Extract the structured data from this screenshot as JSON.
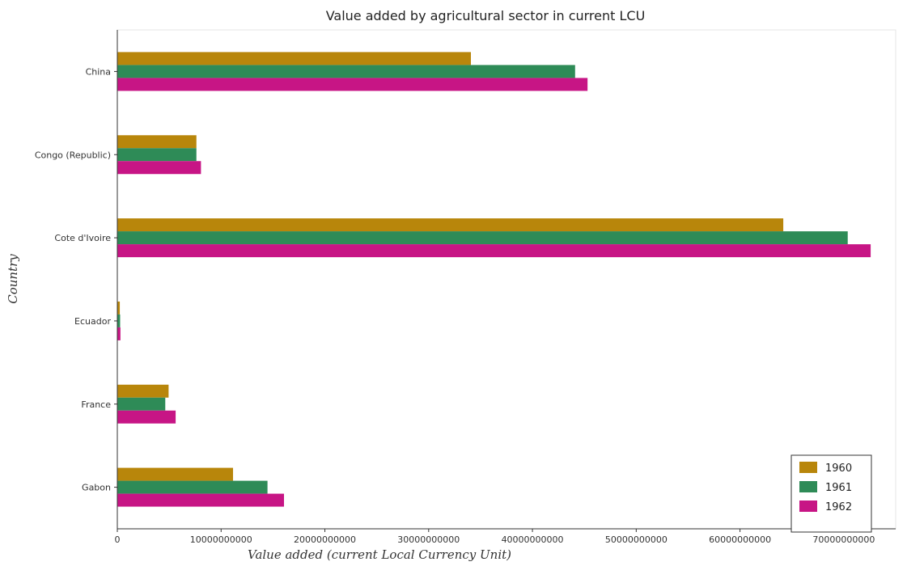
{
  "chart_data": {
    "type": "bar",
    "orientation": "horizontal",
    "title": "Value added by agricultural sector in current LCU",
    "xlabel": "Value added (current Local Currency Unit)",
    "ylabel": "Country",
    "categories": [
      "China",
      "Congo (Republic)",
      "Cote d'Ivoire",
      "Ecuador",
      "France",
      "Gabon"
    ],
    "series": [
      {
        "name": "1960",
        "color": "#b8860b",
        "values": [
          34070000000,
          7620000000,
          64170000000,
          240000000,
          4940000000,
          11150000000
        ]
      },
      {
        "name": "1961",
        "color": "#2e8b57",
        "values": [
          44110000000,
          7620000000,
          70380000000,
          270000000,
          4620000000,
          14470000000
        ]
      },
      {
        "name": "1962",
        "color": "#c71585",
        "values": [
          45310000000,
          8060000000,
          72590000000,
          300000000,
          5620000000,
          16060000000
        ]
      }
    ],
    "xlim": [
      0,
      75000000000
    ],
    "xticks": [
      0,
      10000000000,
      20000000000,
      30000000000,
      40000000000,
      50000000000,
      60000000000,
      70000000000
    ],
    "xtick_labels": [
      "0",
      "10000000000",
      "20000000000",
      "30000000000",
      "40000000000",
      "50000000000",
      "60000000000",
      "70000000000"
    ],
    "grid": false,
    "legend_position": "bottom-right"
  }
}
